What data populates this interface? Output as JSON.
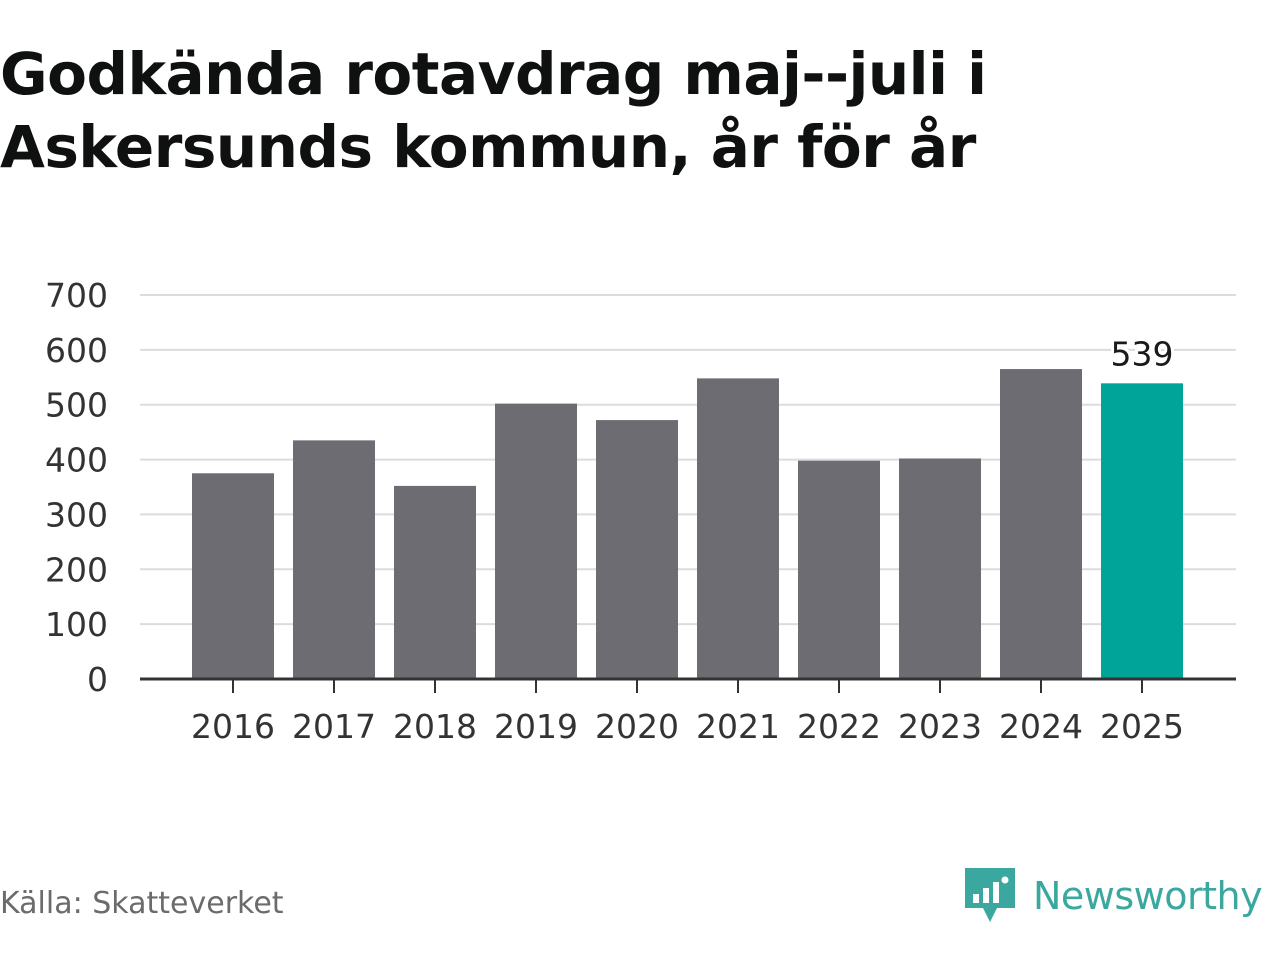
{
  "title": "Godkända rotavdrag maj--juli i Askersunds kommun, år för år",
  "source": "Källa: Skatteverket",
  "brand": {
    "name": "Newsworthy",
    "logo_icon": "newsworthy-logo-icon",
    "color": "#3aa89e"
  },
  "colors": {
    "bar": "#6d6c73",
    "highlight": "#00a499",
    "grid": "#dcdcdc",
    "axis": "#333333",
    "text": "#333333"
  },
  "chart_data": {
    "type": "bar",
    "title": "Godkända rotavdrag maj--juli i Askersunds kommun, år för år",
    "xlabel": "",
    "ylabel": "",
    "categories": [
      "2016",
      "2017",
      "2018",
      "2019",
      "2020",
      "2021",
      "2022",
      "2023",
      "2024",
      "2025"
    ],
    "values": [
      375,
      435,
      352,
      502,
      472,
      548,
      398,
      402,
      565,
      539
    ],
    "highlight_index": 9,
    "data_labels": [
      {
        "index": 9,
        "text": "539"
      }
    ],
    "ylim": [
      0,
      700
    ],
    "yticks": [
      "0",
      "100",
      "200",
      "300",
      "400",
      "500",
      "600",
      "700"
    ],
    "grid": true,
    "legend": "none"
  }
}
